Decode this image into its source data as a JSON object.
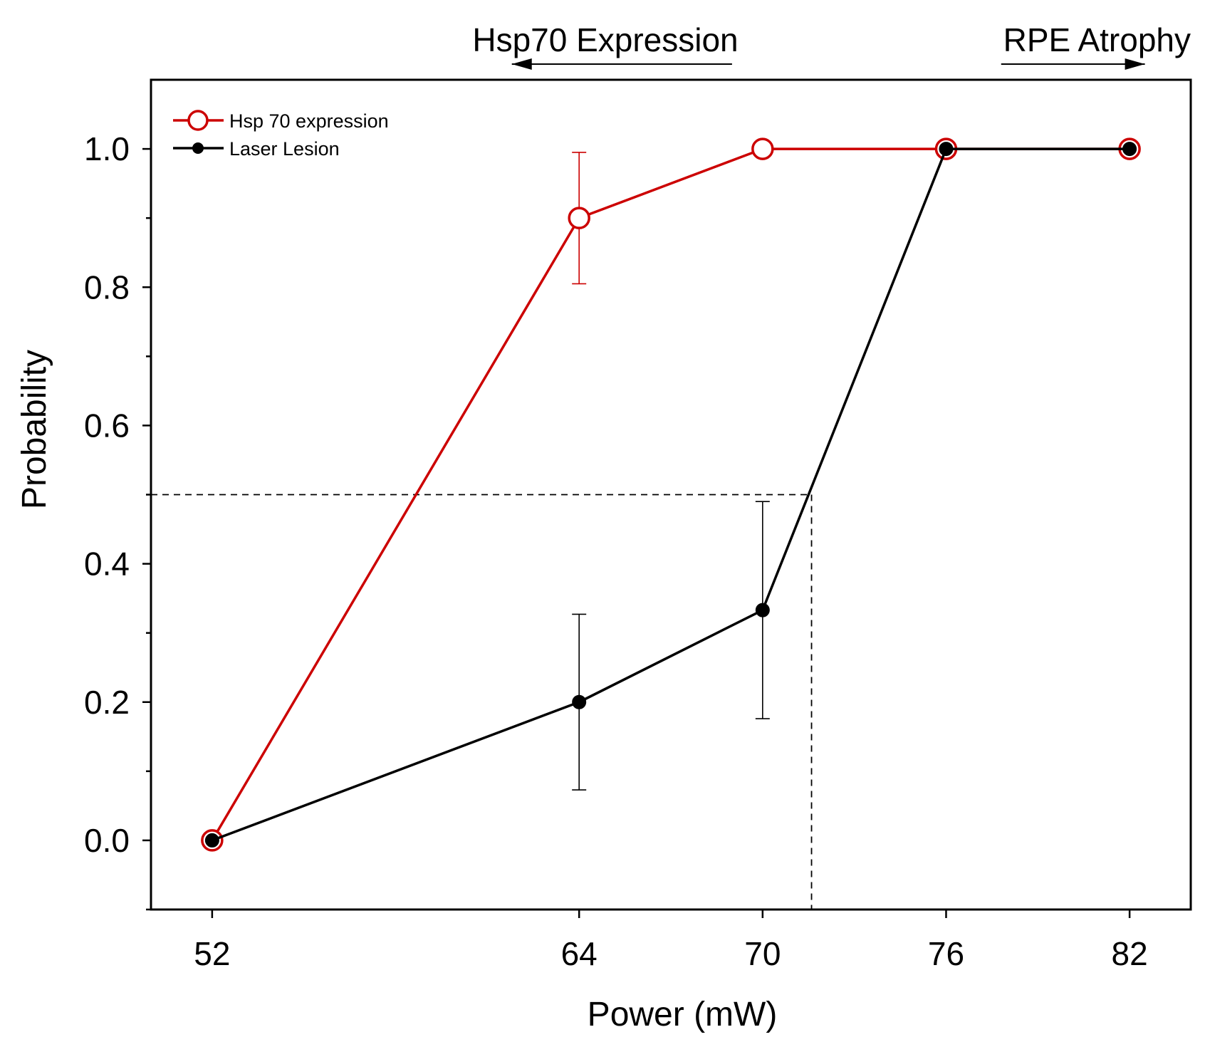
{
  "chart_data": {
    "type": "line",
    "xlabel": "Power (mW)",
    "ylabel": "Probability",
    "xlim": [
      50,
      84
    ],
    "ylim": [
      -0.1,
      1.1
    ],
    "xticks": [
      52,
      64,
      70,
      76,
      82
    ],
    "xtick_labels": [
      "52",
      "64",
      "70",
      "76",
      "82"
    ],
    "yticks": [
      0.0,
      0.2,
      0.4,
      0.6,
      0.8,
      1.0
    ],
    "ytick_labels": [
      "0.0",
      "0.2",
      "0.4",
      "0.6",
      "0.8",
      "1.0"
    ],
    "yminor_ticks": [
      -0.1,
      0.1,
      0.3,
      0.5,
      0.7,
      0.9
    ],
    "series": [
      {
        "name": "Hsp 70 expression",
        "color": "#cc0000",
        "marker": "open-circle",
        "x": [
          52,
          64,
          70,
          76,
          82
        ],
        "y": [
          0.0,
          0.9,
          1.0,
          1.0,
          1.0
        ],
        "err": [
          0,
          0.095,
          0,
          0,
          0
        ]
      },
      {
        "name": "Laser Lesion",
        "color": "#000000",
        "marker": "filled-circle",
        "x": [
          52,
          64,
          70,
          76,
          82
        ],
        "y": [
          0.0,
          0.2,
          0.333,
          1.0,
          1.0
        ],
        "err": [
          0,
          0.127,
          0.157,
          0,
          0
        ]
      }
    ],
    "reference_lines": {
      "y_value": 0.5,
      "x_value": 71.6,
      "style": "dashed"
    },
    "annotations": [
      {
        "text": "Hsp70 Expression",
        "arrow_direction": "left",
        "arrow_from_x": 69.0,
        "arrow_to_x": 61.8
      },
      {
        "text": "RPE Atrophy",
        "arrow_direction": "right",
        "arrow_from_x": 77.8,
        "arrow_to_x": 82.5
      }
    ],
    "legend": {
      "placement": "top-left",
      "entries": [
        "Hsp 70 expression",
        "Laser Lesion"
      ]
    },
    "grid": false
  }
}
